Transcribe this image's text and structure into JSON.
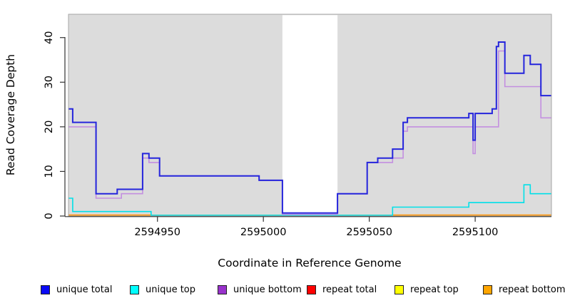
{
  "chart_data": {
    "type": "line",
    "subtype": "step-coverage",
    "title": "",
    "xlabel": "Coordinate in Reference Genome",
    "ylabel": "Read Coverage Depth",
    "xlim": [
      2594908,
      2595136
    ],
    "ylim": [
      0,
      45
    ],
    "x_ticks": [
      2594950,
      2595000,
      2595050,
      2595100
    ],
    "x_tick_labels": [
      "2594950",
      "2595000",
      "2595050",
      "2595100"
    ],
    "y_ticks": [
      0,
      10,
      20,
      30,
      40
    ],
    "y_tick_labels": [
      "0",
      "10",
      "20",
      "30",
      "40"
    ],
    "grid": false,
    "legend_position": "bottom",
    "panel_bg": "#dcdcdc",
    "panel_border": "#a6a6a6",
    "gap_region": {
      "x0": 2595009,
      "x1": 2595035,
      "fill": "#ffffff"
    },
    "series": [
      {
        "name": "unique total",
        "color": "#2525dc",
        "width": 2,
        "points": [
          [
            2594908,
            24
          ],
          [
            2594910,
            21
          ],
          [
            2594921,
            5
          ],
          [
            2594931,
            6
          ],
          [
            2594943,
            14
          ],
          [
            2594946,
            13
          ],
          [
            2594951,
            9
          ],
          [
            2594998,
            8
          ],
          [
            2595009,
            0
          ],
          [
            2595035,
            5
          ],
          [
            2595049,
            12
          ],
          [
            2595054,
            13
          ],
          [
            2595061,
            15
          ],
          [
            2595066,
            21
          ],
          [
            2595068,
            22
          ],
          [
            2595097,
            23
          ],
          [
            2595099,
            17
          ],
          [
            2595100,
            23
          ],
          [
            2595108,
            24
          ],
          [
            2595110,
            38
          ],
          [
            2595111,
            39
          ],
          [
            2595114,
            32
          ],
          [
            2595123,
            36
          ],
          [
            2595126,
            34
          ],
          [
            2595131,
            27
          ],
          [
            2595136,
            27
          ]
        ]
      },
      {
        "name": "unique top",
        "color": "#00e0e8",
        "width": 1.6,
        "points": [
          [
            2594908,
            4
          ],
          [
            2594910,
            1
          ],
          [
            2594947,
            0
          ],
          [
            2595061,
            2
          ],
          [
            2595097,
            3
          ],
          [
            2595123,
            7
          ],
          [
            2595126,
            5
          ],
          [
            2595136,
            5
          ]
        ]
      },
      {
        "name": "unique bottom",
        "color": "#c38fe0",
        "width": 1.6,
        "points": [
          [
            2594908,
            20
          ],
          [
            2594921,
            4
          ],
          [
            2594933,
            5
          ],
          [
            2594943,
            13
          ],
          [
            2594946,
            12
          ],
          [
            2594951,
            9
          ],
          [
            2594998,
            8
          ],
          [
            2595009,
            0
          ],
          [
            2595035,
            5
          ],
          [
            2595049,
            12
          ],
          [
            2595061,
            13
          ],
          [
            2595066,
            19
          ],
          [
            2595068,
            20
          ],
          [
            2595099,
            14
          ],
          [
            2595100,
            20
          ],
          [
            2595111,
            37
          ],
          [
            2595114,
            29
          ],
          [
            2595131,
            22
          ],
          [
            2595136,
            22
          ]
        ]
      },
      {
        "name": "repeat total",
        "color": "#e00000",
        "width": 1.6,
        "points": [
          [
            2594908,
            0
          ],
          [
            2595136,
            0
          ]
        ]
      },
      {
        "name": "repeat top",
        "color": "#ffff00",
        "width": 1.6,
        "points": [
          [
            2594908,
            0
          ],
          [
            2595136,
            0
          ]
        ]
      },
      {
        "name": "repeat bottom",
        "color": "#ff9914",
        "width": 2,
        "points": [
          [
            2594908,
            0
          ],
          [
            2594947,
            0
          ]
        ]
      }
    ],
    "baseline_overlays": [
      {
        "name": "blended zero line",
        "color": "#8fd48f",
        "width": 1.6,
        "x0": 2594947,
        "x1": 2595061,
        "value": 0
      },
      {
        "name": "repeat bottom zero left",
        "color": "#ff9914",
        "width": 2,
        "x0": 2594908,
        "x1": 2594947,
        "value": 0
      },
      {
        "name": "repeat bottom zero right",
        "color": "#ff9914",
        "width": 2,
        "x0": 2595061,
        "x1": 2595136,
        "value": 0
      }
    ]
  },
  "legend": {
    "items": [
      {
        "label": "unique total",
        "color": "#0a0af5"
      },
      {
        "label": "unique top",
        "color": "#00ffff"
      },
      {
        "label": "unique bottom",
        "color": "#9932cc"
      },
      {
        "label": "repeat total",
        "color": "#ff0000"
      },
      {
        "label": "repeat top",
        "color": "#ffff00"
      },
      {
        "label": "repeat bottom",
        "color": "#ffa500"
      }
    ]
  }
}
